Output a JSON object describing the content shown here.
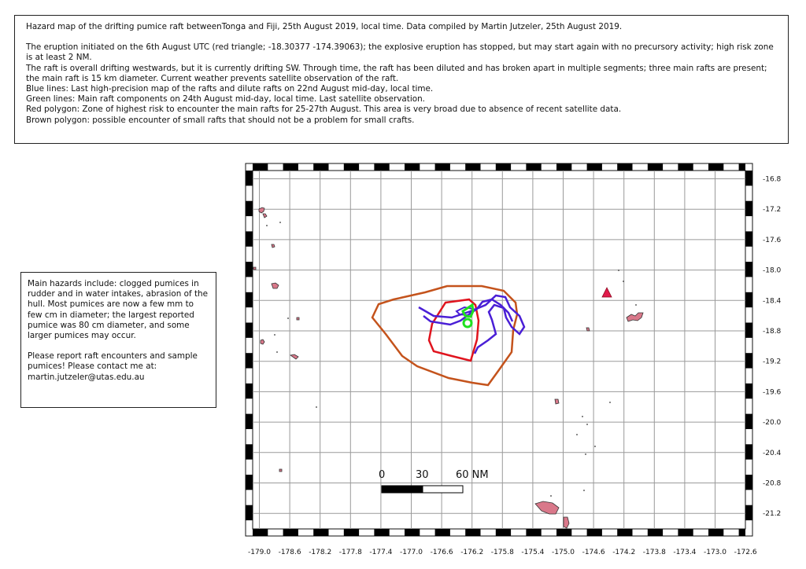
{
  "info": {
    "title": "Hazard map of the drifting pumice raft betweenTonga and Fiji, 25th August 2019, local time.  Data compiled by Martin Jutzeler, 25th August 2019.",
    "eruption": "The eruption initiated on the 6th August UTC (red triangle; -18.30377 -174.39063); the explosive eruption has stopped, but may start again with no precursory activity; high risk zone is at least 2 NM.",
    "drift": "The raft is overall drifting westwards, but it is currently drifting SW. Through time, the raft has been diluted and has broken apart in multiple segments; three main rafts are present; the main raft is 15 km diameter. Current weather prevents satellite observation of the raft.",
    "blue": "Blue lines: Last high-precision map of the rafts and dilute rafts on 22nd August mid-day, local time.",
    "green": "Green lines: Main raft components on 24th August mid-day, local time. Last satellite observation.",
    "red": "Red polygon: Zone of highest risk to encounter the main rafts for 25-27th August. This area is very broad due to absence of recent satellite data.",
    "brown": "Brown polygon: possible encounter of small rafts that should not be a problem for small crafts."
  },
  "hazards": {
    "text1": "Main hazards include: clogged pumices in rudder and in water intakes, abrasion of the hull. Most pumices are now a few mm to few cm in diameter; the largest reported pumice was 80 cm diameter, and some larger pumices may occur.",
    "text2": "Please report raft encounters and sample pumices! Please contact me at: martin.jutzeler@utas.edu.au"
  },
  "map": {
    "lon_ticks": [
      "-179.0",
      "-178.6",
      "-178.2",
      "-177.8",
      "-177.4",
      "-177.0",
      "-176.6",
      "-176.2",
      "-175.8",
      "-175.4",
      "-175.0",
      "-174.6",
      "-174.2",
      "-173.8",
      "-173.4",
      "-173.0",
      "-172.6"
    ],
    "lat_ticks": [
      "-16.8",
      "-17.2",
      "-17.6",
      "-18.0",
      "-18.4",
      "-18.8",
      "-19.2",
      "-19.6",
      "-20.0",
      "-20.4",
      "-20.8",
      "-21.2"
    ],
    "scale_labels": [
      "0",
      "30",
      "60 NM"
    ],
    "colors": {
      "blue": "#4a1fd6",
      "green": "#1fe01f",
      "red": "#e0141e",
      "brown": "#c4531c",
      "land": "#d9788a",
      "volcano": "#e01a4a"
    }
  }
}
